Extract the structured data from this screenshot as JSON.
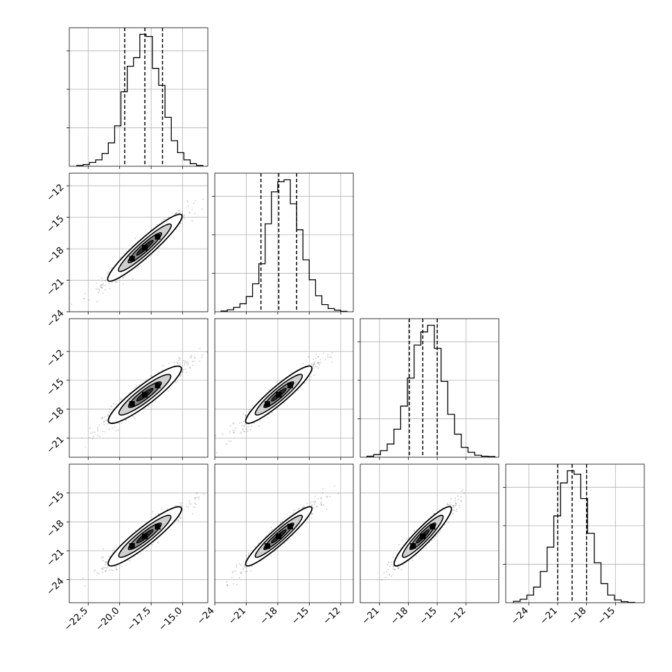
{
  "chart_data": {
    "type": "corner",
    "grid": true,
    "colors": {
      "line": "#000000",
      "grid": "#b0b0b0",
      "scatter": "#000000"
    },
    "quantiles": [
      0.16,
      0.5,
      0.84
    ],
    "parameters": [
      {
        "xlim": [
          -24.0,
          -13.0
        ],
        "xticks": [
          -22.5,
          -20.0,
          -17.5,
          -15.0
        ],
        "xtick_labels": [
          "−22.5",
          "−20.0",
          "−17.5",
          "−15.0"
        ],
        "quantile_values": [
          -19.6,
          -18.0,
          -16.6
        ],
        "hist": {
          "edges": [
            -23.4,
            -22.9,
            -22.4,
            -21.9,
            -21.4,
            -20.9,
            -20.4,
            -19.9,
            -19.4,
            -18.9,
            -18.4,
            -17.9,
            -17.4,
            -16.9,
            -16.4,
            -15.9,
            -15.4,
            -14.9,
            -14.4,
            -13.9,
            -13.4
          ],
          "counts": [
            2,
            4,
            9,
            15,
            30,
            55,
            95,
            175,
            235,
            255,
            310,
            305,
            230,
            190,
            115,
            60,
            32,
            15,
            6,
            2
          ]
        }
      },
      {
        "ylim": [
          -24.0,
          -10.8
        ],
        "yticks": [
          -24,
          -21,
          -18,
          -15,
          -12
        ],
        "ytick_labels": [
          "−24",
          "−21",
          "−18",
          "−15",
          "−12"
        ],
        "xlim": [
          -24.0,
          -10.8
        ],
        "xticks": [
          -24,
          -21,
          -18,
          -15,
          -12
        ],
        "xtick_labels": [
          "−24",
          "−21",
          "−18",
          "−15",
          "−12"
        ],
        "quantile_values": [
          -19.6,
          -17.9,
          -16.2
        ],
        "hist": {
          "edges": [
            -23.4,
            -22.8,
            -22.2,
            -21.6,
            -21.0,
            -20.4,
            -19.8,
            -19.2,
            -18.6,
            -18.0,
            -17.4,
            -16.8,
            -16.2,
            -15.6,
            -15.0,
            -14.4,
            -13.8,
            -13.2,
            -12.6,
            -12.0,
            -11.4
          ],
          "counts": [
            2,
            5,
            11,
            20,
            38,
            70,
            120,
            220,
            300,
            325,
            330,
            270,
            205,
            130,
            80,
            40,
            18,
            8,
            4,
            1
          ]
        }
      },
      {
        "ylim": [
          -23.0,
          -8.6
        ],
        "yticks": [
          -21,
          -18,
          -15,
          -12
        ],
        "ytick_labels": [
          "−21",
          "−18",
          "−15",
          "−12"
        ],
        "xlim": [
          -23.0,
          -8.6
        ],
        "xticks": [
          -21,
          -18,
          -15,
          -12
        ],
        "xtick_labels": [
          "−21",
          "−18",
          "−15",
          "−12"
        ],
        "quantile_values": [
          -17.9,
          -16.5,
          -15.0
        ],
        "hist": {
          "edges": [
            -22.3,
            -21.6,
            -20.9,
            -20.2,
            -19.5,
            -18.8,
            -18.1,
            -17.4,
            -16.7,
            -16.0,
            -15.3,
            -14.6,
            -13.9,
            -13.2,
            -12.5,
            -11.8,
            -11.1,
            -10.4,
            -9.7,
            -9.0
          ],
          "counts": [
            3,
            8,
            20,
            40,
            85,
            155,
            240,
            340,
            380,
            400,
            330,
            230,
            130,
            70,
            30,
            15,
            6,
            3,
            2
          ]
        }
      },
      {
        "ylim": [
          -26.4,
          -12.0
        ],
        "yticks": [
          -24,
          -21,
          -18,
          -15
        ],
        "ytick_labels": [
          "−24",
          "−21",
          "−18",
          "−15"
        ],
        "xlim": [
          -26.4,
          -12.0
        ],
        "xticks": [
          -24,
          -21,
          -18,
          -15
        ],
        "xtick_labels": [
          "−24",
          "−21",
          "−18",
          "−15"
        ],
        "quantile_values": [
          -21.0,
          -19.5,
          -18.0
        ],
        "hist": {
          "edges": [
            -25.6,
            -24.9,
            -24.2,
            -23.5,
            -22.8,
            -22.1,
            -21.4,
            -20.7,
            -20.0,
            -19.3,
            -18.6,
            -17.9,
            -17.2,
            -16.5,
            -15.8,
            -15.1,
            -14.4,
            -13.7,
            -13.0
          ],
          "counts": [
            4,
            10,
            22,
            45,
            90,
            160,
            250,
            345,
            380,
            370,
            300,
            200,
            115,
            55,
            22,
            8,
            3,
            1
          ]
        }
      }
    ],
    "pairs": [
      {
        "x": 0,
        "y": 1,
        "center": [
          -18.0,
          -17.9
        ],
        "sd": [
          1.45,
          1.55
        ],
        "rho": 0.96
      },
      {
        "x": 0,
        "y": 2,
        "center": [
          -18.0,
          -16.5
        ],
        "sd": [
          1.45,
          1.45
        ],
        "rho": 0.94
      },
      {
        "x": 1,
        "y": 2,
        "center": [
          -17.9,
          -16.5
        ],
        "sd": [
          1.55,
          1.45
        ],
        "rho": 0.95
      },
      {
        "x": 0,
        "y": 3,
        "center": [
          -18.0,
          -19.5
        ],
        "sd": [
          1.45,
          1.5
        ],
        "rho": 0.95
      },
      {
        "x": 1,
        "y": 3,
        "center": [
          -17.9,
          -19.5
        ],
        "sd": [
          1.55,
          1.5
        ],
        "rho": 0.96
      },
      {
        "x": 2,
        "y": 3,
        "center": [
          -16.5,
          -19.5
        ],
        "sd": [
          1.45,
          1.5
        ],
        "rho": 0.95
      }
    ]
  }
}
